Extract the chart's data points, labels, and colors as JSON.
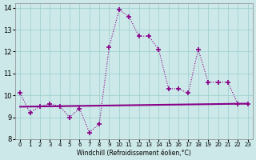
{
  "hours": [
    0,
    1,
    2,
    3,
    4,
    5,
    6,
    7,
    8,
    9,
    10,
    11,
    12,
    13,
    14,
    15,
    16,
    17,
    18,
    19,
    20,
    21,
    22,
    23
  ],
  "windchill": [
    10.1,
    9.2,
    9.5,
    9.6,
    9.5,
    9.0,
    9.4,
    8.3,
    8.7,
    12.2,
    13.9,
    13.6,
    12.7,
    12.7,
    12.1,
    10.3,
    10.3,
    10.1,
    12.1,
    10.6,
    10.6,
    10.6,
    9.6,
    9.6
  ],
  "trend_start": 9.48,
  "trend_end": 9.62,
  "bg_color": "#cce8e8",
  "line_color": "#880088",
  "trend_color": "#880088",
  "grid_color": "#99cccc",
  "xlabel": "Windchill (Refroidissement éolien,°C)",
  "ylim": [
    8,
    14.2
  ],
  "xlim": [
    -0.5,
    23.5
  ],
  "yticks": [
    8,
    9,
    10,
    11,
    12,
    13,
    14
  ],
  "xticks": [
    0,
    1,
    2,
    3,
    4,
    5,
    6,
    7,
    8,
    9,
    10,
    11,
    12,
    13,
    14,
    15,
    16,
    17,
    18,
    19,
    20,
    21,
    22,
    23
  ],
  "marker": "+",
  "linewidth": 0.8,
  "trend_linewidth": 1.5,
  "marker_size": 4,
  "marker_linewidth": 1.2
}
